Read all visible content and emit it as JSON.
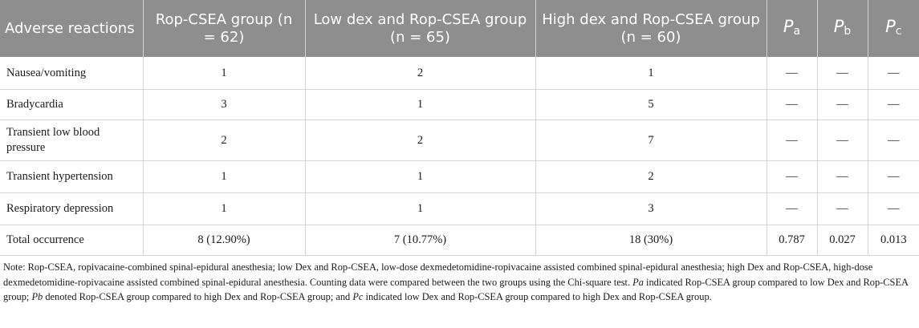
{
  "table": {
    "headers": [
      "Adverse reactions",
      "Rop-CSEA group (n = 62)",
      "Low dex and Rop-CSEA group (n = 65)",
      "High dex and Rop-CSEA group (n = 60)",
      "P",
      "a",
      "P",
      "b",
      "P",
      "c"
    ],
    "rows": [
      {
        "reaction": "Nausea/vomiting",
        "rop": "1",
        "low": "2",
        "high": "1",
        "pa": "—",
        "pb": "—",
        "pc": "—"
      },
      {
        "reaction": "Bradycardia",
        "rop": "3",
        "low": "1",
        "high": "5",
        "pa": "—",
        "pb": "—",
        "pc": "—"
      },
      {
        "reaction": "Transient low blood pressure",
        "rop": "2",
        "low": "2",
        "high": "7",
        "pa": "—",
        "pb": "—",
        "pc": "—"
      },
      {
        "reaction": "Transient hypertension",
        "rop": "1",
        "low": "1",
        "high": "2",
        "pa": "—",
        "pb": "—",
        "pc": "—"
      },
      {
        "reaction": "Respiratory depression",
        "rop": "1",
        "low": "1",
        "high": "3",
        "pa": "—",
        "pb": "—",
        "pc": "—"
      },
      {
        "reaction": "Total occurrence",
        "rop": "8 (12.90%)",
        "low": "7 (10.77%)",
        "high": "18 (30%)",
        "pa": "0.787",
        "pb": "0.027",
        "pc": "0.013"
      }
    ]
  },
  "note": {
    "part1": "Note: Rop-CSEA, ropivacaine-combined spinal-epidural anesthesia; low Dex and Rop-CSEA, low-dose dexmedetomidine-ropivacaine assisted combined spinal-epidural anesthesia; high Dex and Rop-CSEA, high-dose dexmedetomidine-ropivacaine assisted combined spinal-epidural anesthesia. Counting data were compared between the two groups using the Chi-square test. ",
    "pa_sym": "Pa",
    "part2": " indicated Rop-CSEA group compared to low Dex and Rop-CSEA group; ",
    "pb_sym": "Pb",
    "part3": " denoted Rop-CSEA group compared to high Dex and Rop-CSEA group; and ",
    "pc_sym": "Pc",
    "part4": " indicated low Dex and Rop-CSEA group compared to high Dex and Rop-CSEA group."
  },
  "colors": {
    "header_bg": "#8e8e8e",
    "header_text": "#ffffff",
    "grid": "#d4d4d4"
  }
}
